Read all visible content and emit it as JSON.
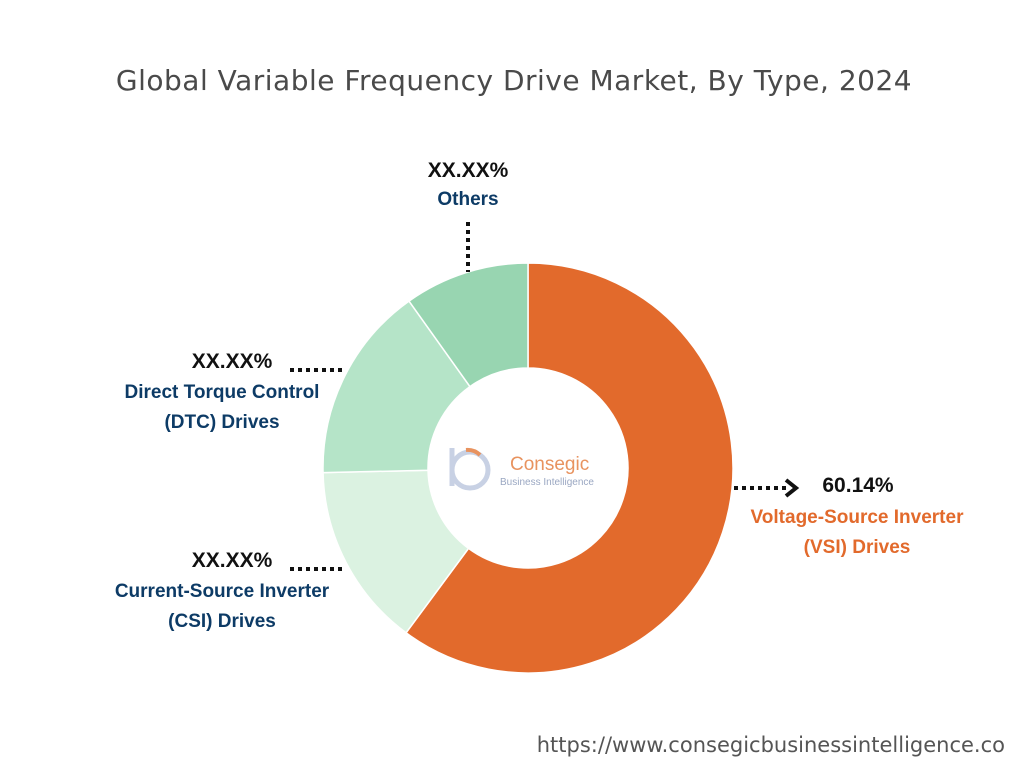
{
  "chart_data": {
    "type": "pie",
    "donut": true,
    "title": "Global Variable Frequency Drive Market, By Type, 2024",
    "slices": [
      {
        "label_lines": [
          "Voltage-Source Inverter",
          "(VSI) Drives"
        ],
        "value_label": "60.14%",
        "value": 60.14,
        "color": "#e26a2c"
      },
      {
        "label_lines": [
          "Current-Source Inverter",
          "(CSI) Drives"
        ],
        "value_label": "XX.XX%",
        "value": 14.5,
        "color": "#dbf2e1"
      },
      {
        "label_lines": [
          "Direct Torque Control",
          "(DTC) Drives"
        ],
        "value_label": "XX.XX%",
        "value": 15.5,
        "color": "#b5e4c8"
      },
      {
        "label_lines": [
          "Others"
        ],
        "value_label": "XX.XX%",
        "value": 9.86,
        "color": "#98d5b1"
      }
    ]
  },
  "logo": {
    "name": "Consegic",
    "tagline": "Business Intelligence"
  },
  "footer": {
    "url": "https://www.consegicbusinessintelligence.co"
  }
}
